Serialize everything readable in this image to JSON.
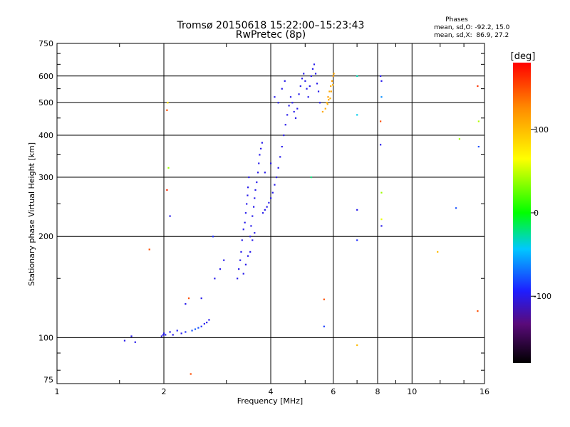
{
  "chart_data": {
    "type": "scatter",
    "title": "Tromsø 20150618 15:22:00–15:23:43",
    "subtitle": "RwPretec (8p)",
    "xlabel": "Frequency [MHz]",
    "ylabel": "Stationary phase Virtual Height [km]",
    "x_scale": "log",
    "y_scale": "log",
    "xlim": [
      1,
      16
    ],
    "ylim": [
      73,
      750
    ],
    "x_ticks": [
      1,
      2,
      4,
      6,
      8,
      10,
      16
    ],
    "x_tick_labels": [
      "1",
      "2",
      "4",
      "6",
      "8",
      "10",
      "16"
    ],
    "y_ticks": [
      75,
      100,
      200,
      300,
      400,
      500,
      600,
      750
    ],
    "y_tick_labels": [
      "75",
      "100",
      "200",
      "300",
      "400",
      "500",
      "600",
      "750"
    ],
    "grid": true,
    "phase_stats": {
      "title": "Phases",
      "line1": "mean, sd,O: -92.2, 15.0",
      "line2": "mean, sd,X:  86.9, 27.2"
    },
    "colorbar": {
      "label": "[deg]",
      "range": [
        -180,
        180
      ],
      "ticks": [
        100,
        0,
        -100
      ],
      "tick_labels": [
        "100",
        "0",
        "-100"
      ]
    },
    "series": [
      {
        "points": [
          [
            1.55,
            98,
            -100
          ],
          [
            1.62,
            101,
            -100
          ],
          [
            1.66,
            97,
            -100
          ],
          [
            1.97,
            101,
            -105
          ],
          [
            1.99,
            102,
            -100
          ],
          [
            2.0,
            103,
            -100
          ],
          [
            2.02,
            102,
            -95
          ],
          [
            2.08,
            104,
            -100
          ],
          [
            2.12,
            102,
            -100
          ],
          [
            2.18,
            105,
            -95
          ],
          [
            2.24,
            103,
            -100
          ],
          [
            2.3,
            104,
            -90
          ],
          [
            2.4,
            105,
            -80
          ],
          [
            2.45,
            106,
            -75
          ],
          [
            2.5,
            107,
            -80
          ],
          [
            2.55,
            108,
            -90
          ],
          [
            2.6,
            110,
            -100
          ],
          [
            2.64,
            111,
            -100
          ],
          [
            2.68,
            113,
            -100
          ],
          [
            2.55,
            131,
            -100
          ],
          [
            2.3,
            126,
            -100
          ],
          [
            2.78,
            150,
            -100
          ],
          [
            2.88,
            160,
            -100
          ],
          [
            2.95,
            170,
            -100
          ],
          [
            2.75,
            200,
            -90
          ],
          [
            2.08,
            230,
            -100
          ],
          [
            3.22,
            150,
            -100
          ],
          [
            3.25,
            160,
            -100
          ],
          [
            3.28,
            170,
            -100
          ],
          [
            3.3,
            180,
            -100
          ],
          [
            3.32,
            195,
            -100
          ],
          [
            3.35,
            210,
            -100
          ],
          [
            3.38,
            220,
            -100
          ],
          [
            3.4,
            235,
            -100
          ],
          [
            3.42,
            250,
            -100
          ],
          [
            3.44,
            265,
            -100
          ],
          [
            3.45,
            280,
            -100
          ],
          [
            3.47,
            300,
            -100
          ],
          [
            3.5,
            200,
            -100
          ],
          [
            3.52,
            215,
            -100
          ],
          [
            3.55,
            230,
            -100
          ],
          [
            3.58,
            245,
            -100
          ],
          [
            3.6,
            260,
            -100
          ],
          [
            3.62,
            275,
            -100
          ],
          [
            3.65,
            290,
            -100
          ],
          [
            3.68,
            310,
            -100
          ],
          [
            3.7,
            330,
            -100
          ],
          [
            3.72,
            350,
            -100
          ],
          [
            3.75,
            365,
            -100
          ],
          [
            3.78,
            380,
            -100
          ],
          [
            3.8,
            235,
            -100
          ],
          [
            3.85,
            240,
            -100
          ],
          [
            3.9,
            245,
            -100
          ],
          [
            3.95,
            252,
            -100
          ],
          [
            4.0,
            260,
            -100
          ],
          [
            4.05,
            270,
            -100
          ],
          [
            4.1,
            285,
            -100
          ],
          [
            4.15,
            300,
            -100
          ],
          [
            4.2,
            320,
            -100
          ],
          [
            4.25,
            345,
            -100
          ],
          [
            4.3,
            370,
            -100
          ],
          [
            4.35,
            400,
            -100
          ],
          [
            4.4,
            430,
            -100
          ],
          [
            4.45,
            460,
            -100
          ],
          [
            4.5,
            490,
            -100
          ],
          [
            4.55,
            520,
            -100
          ],
          [
            4.6,
            500,
            -100
          ],
          [
            4.65,
            470,
            -100
          ],
          [
            4.7,
            450,
            -100
          ],
          [
            4.75,
            480,
            -100
          ],
          [
            4.8,
            530,
            -100
          ],
          [
            4.85,
            560,
            -100
          ],
          [
            4.9,
            590,
            -100
          ],
          [
            4.95,
            610,
            -100
          ],
          [
            5.0,
            580,
            -100
          ],
          [
            5.05,
            550,
            -100
          ],
          [
            5.1,
            520,
            -100
          ],
          [
            5.15,
            560,
            -100
          ],
          [
            5.2,
            600,
            -100
          ],
          [
            5.25,
            630,
            -100
          ],
          [
            5.3,
            650,
            -100
          ],
          [
            5.35,
            610,
            -100
          ],
          [
            5.4,
            570,
            -100
          ],
          [
            5.45,
            540,
            -100
          ],
          [
            5.5,
            500,
            -100
          ],
          [
            4.1,
            520,
            -100
          ],
          [
            4.2,
            500,
            -100
          ],
          [
            4.3,
            550,
            -100
          ],
          [
            4.38,
            580,
            -100
          ],
          [
            3.85,
            310,
            -100
          ],
          [
            4.0,
            330,
            -100
          ],
          [
            3.6,
            205,
            -100
          ],
          [
            3.55,
            195,
            -100
          ],
          [
            3.5,
            180,
            -100
          ],
          [
            3.45,
            175,
            -100
          ],
          [
            3.4,
            165,
            -100
          ],
          [
            3.35,
            155,
            -100
          ],
          [
            7.0,
            240,
            -100
          ],
          [
            7.0,
            195,
            -90
          ],
          [
            8.2,
            215,
            -100
          ],
          [
            8.15,
            375,
            -100
          ],
          [
            5.65,
            108,
            -85
          ],
          [
            13.3,
            243,
            -80
          ]
        ]
      },
      {
        "points": [
          [
            5.7,
            480,
            110
          ],
          [
            5.75,
            500,
            110
          ],
          [
            5.8,
            520,
            115
          ],
          [
            5.85,
            540,
            110
          ],
          [
            5.9,
            560,
            110
          ],
          [
            5.95,
            580,
            115
          ],
          [
            6.0,
            600,
            115
          ],
          [
            6.02,
            610,
            110
          ],
          [
            5.88,
            515,
            105
          ],
          [
            5.92,
            540,
            110
          ],
          [
            5.98,
            565,
            105
          ],
          [
            5.6,
            470,
            110
          ],
          [
            5.78,
            495,
            105
          ],
          [
            5.82,
            510,
            112
          ]
        ]
      },
      {
        "points": [
          [
            1.82,
            183,
            150
          ],
          [
            2.04,
            475,
            150
          ],
          [
            2.04,
            275,
            165
          ],
          [
            2.38,
            78,
            150
          ],
          [
            2.35,
            131,
            150
          ],
          [
            5.65,
            130,
            150
          ],
          [
            8.15,
            440,
            150
          ],
          [
            15.3,
            560,
            160
          ],
          [
            15.3,
            120,
            150
          ],
          [
            15.4,
            440,
            45
          ],
          [
            15.4,
            370,
            -80
          ],
          [
            13.6,
            390,
            40
          ],
          [
            8.2,
            270,
            40
          ],
          [
            8.2,
            225,
            60
          ],
          [
            8.15,
            600,
            -100
          ],
          [
            8.2,
            580,
            -100
          ],
          [
            8.2,
            520,
            -60
          ],
          [
            7.0,
            460,
            -40
          ],
          [
            7.0,
            600,
            -30
          ],
          [
            2.06,
            320,
            40
          ],
          [
            2.05,
            500,
            80
          ],
          [
            5.2,
            300,
            -20
          ],
          [
            7.0,
            95,
            100
          ],
          [
            11.8,
            180,
            100
          ]
        ]
      }
    ]
  }
}
